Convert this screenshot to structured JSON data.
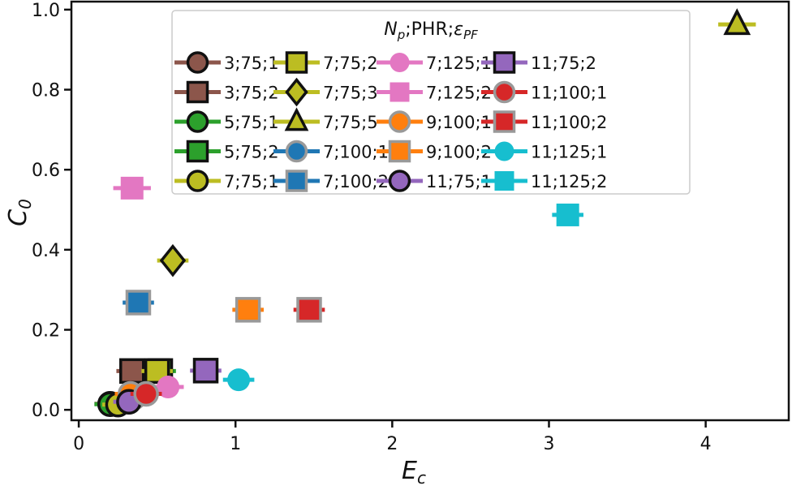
{
  "chart_data": {
    "type": "scatter",
    "xlabel": "E",
    "xlabel_sub": "c",
    "ylabel": "C",
    "ylabel_sub": "0",
    "xlim": [
      -0.047,
      4.53
    ],
    "ylim": [
      -0.026,
      1.02
    ],
    "xticks": [
      0,
      1,
      2,
      3,
      4
    ],
    "yticks": [
      "0.0",
      "0.2",
      "0.4",
      "0.6",
      "0.8",
      "1.0"
    ],
    "grid": false,
    "legend": {
      "placement": "top-center",
      "columns": 4,
      "title_parts": [
        "N",
        "p",
        ";PHR;",
        "ε",
        "PF"
      ]
    },
    "series": [
      {
        "name": "3;75;1",
        "marker": "circle",
        "color": "#8c564b",
        "edge": "#111111",
        "x": 0.2,
        "y": 0.015,
        "xerr": 0.1
      },
      {
        "name": "3;75;2",
        "marker": "square",
        "color": "#8c564b",
        "edge": "#111111",
        "x": 0.34,
        "y": 0.097,
        "xerr": 0.1
      },
      {
        "name": "5;75;1",
        "marker": "circle",
        "color": "#2ca02c",
        "edge": "#111111",
        "x": 0.2,
        "y": 0.014,
        "xerr": 0.1
      },
      {
        "name": "5;75;2",
        "marker": "square",
        "color": "#2ca02c",
        "edge": "#111111",
        "x": 0.52,
        "y": 0.097,
        "xerr": 0.1
      },
      {
        "name": "7;75;1",
        "marker": "circle",
        "color": "#bcbd22",
        "edge": "#111111",
        "x": 0.25,
        "y": 0.013,
        "xerr": 0.1
      },
      {
        "name": "7;75;2",
        "marker": "square",
        "color": "#bcbd22",
        "edge": "#111111",
        "x": 0.5,
        "y": 0.097,
        "xerr": 0.1
      },
      {
        "name": "7;75;3",
        "marker": "diamond",
        "color": "#bcbd22",
        "edge": "#111111",
        "x": 0.6,
        "y": 0.373,
        "xerr": 0.1
      },
      {
        "name": "7;75;5",
        "marker": "triangle",
        "color": "#bcbd22",
        "edge": "#111111",
        "x": 4.2,
        "y": 0.963,
        "xerr": 0.12
      },
      {
        "name": "7;100;1",
        "marker": "circle",
        "color": "#1f77b4",
        "edge": "#999999",
        "x": 0.35,
        "y": 0.03,
        "xerr": 0.1
      },
      {
        "name": "7;100;2",
        "marker": "square",
        "color": "#1f77b4",
        "edge": "#999999",
        "x": 0.38,
        "y": 0.268,
        "xerr": 0.1
      },
      {
        "name": "7;125;1",
        "marker": "circle",
        "color": "#e377c2",
        "edge": "none",
        "x": 0.57,
        "y": 0.057,
        "xerr": 0.1
      },
      {
        "name": "7;125;2",
        "marker": "square",
        "color": "#e377c2",
        "edge": "none",
        "x": 0.34,
        "y": 0.554,
        "xerr": 0.12
      },
      {
        "name": "9;100;1",
        "marker": "circle",
        "color": "#ff7f0e",
        "edge": "#999999",
        "x": 0.33,
        "y": 0.04,
        "xerr": 0.1
      },
      {
        "name": "9;100;2",
        "marker": "square",
        "color": "#ff7f0e",
        "edge": "#999999",
        "x": 1.08,
        "y": 0.25,
        "xerr": 0.1
      },
      {
        "name": "11;75;1",
        "marker": "circle",
        "color": "#9467bd",
        "edge": "#111111",
        "x": 0.32,
        "y": 0.02,
        "xerr": 0.1
      },
      {
        "name": "11;75;2",
        "marker": "square",
        "color": "#9467bd",
        "edge": "#111111",
        "x": 0.81,
        "y": 0.098,
        "xerr": 0.1
      },
      {
        "name": "11;100;1",
        "marker": "circle",
        "color": "#d62728",
        "edge": "#999999",
        "x": 0.43,
        "y": 0.04,
        "xerr": 0.1
      },
      {
        "name": "11;100;2",
        "marker": "square",
        "color": "#d62728",
        "edge": "#999999",
        "x": 1.47,
        "y": 0.25,
        "xerr": 0.1
      },
      {
        "name": "11;125;1",
        "marker": "circle",
        "color": "#17becf",
        "edge": "none",
        "x": 1.02,
        "y": 0.075,
        "xerr": 0.1
      },
      {
        "name": "11;125;2",
        "marker": "square",
        "color": "#17becf",
        "edge": "none",
        "x": 3.12,
        "y": 0.487,
        "xerr": 0.1
      }
    ]
  }
}
